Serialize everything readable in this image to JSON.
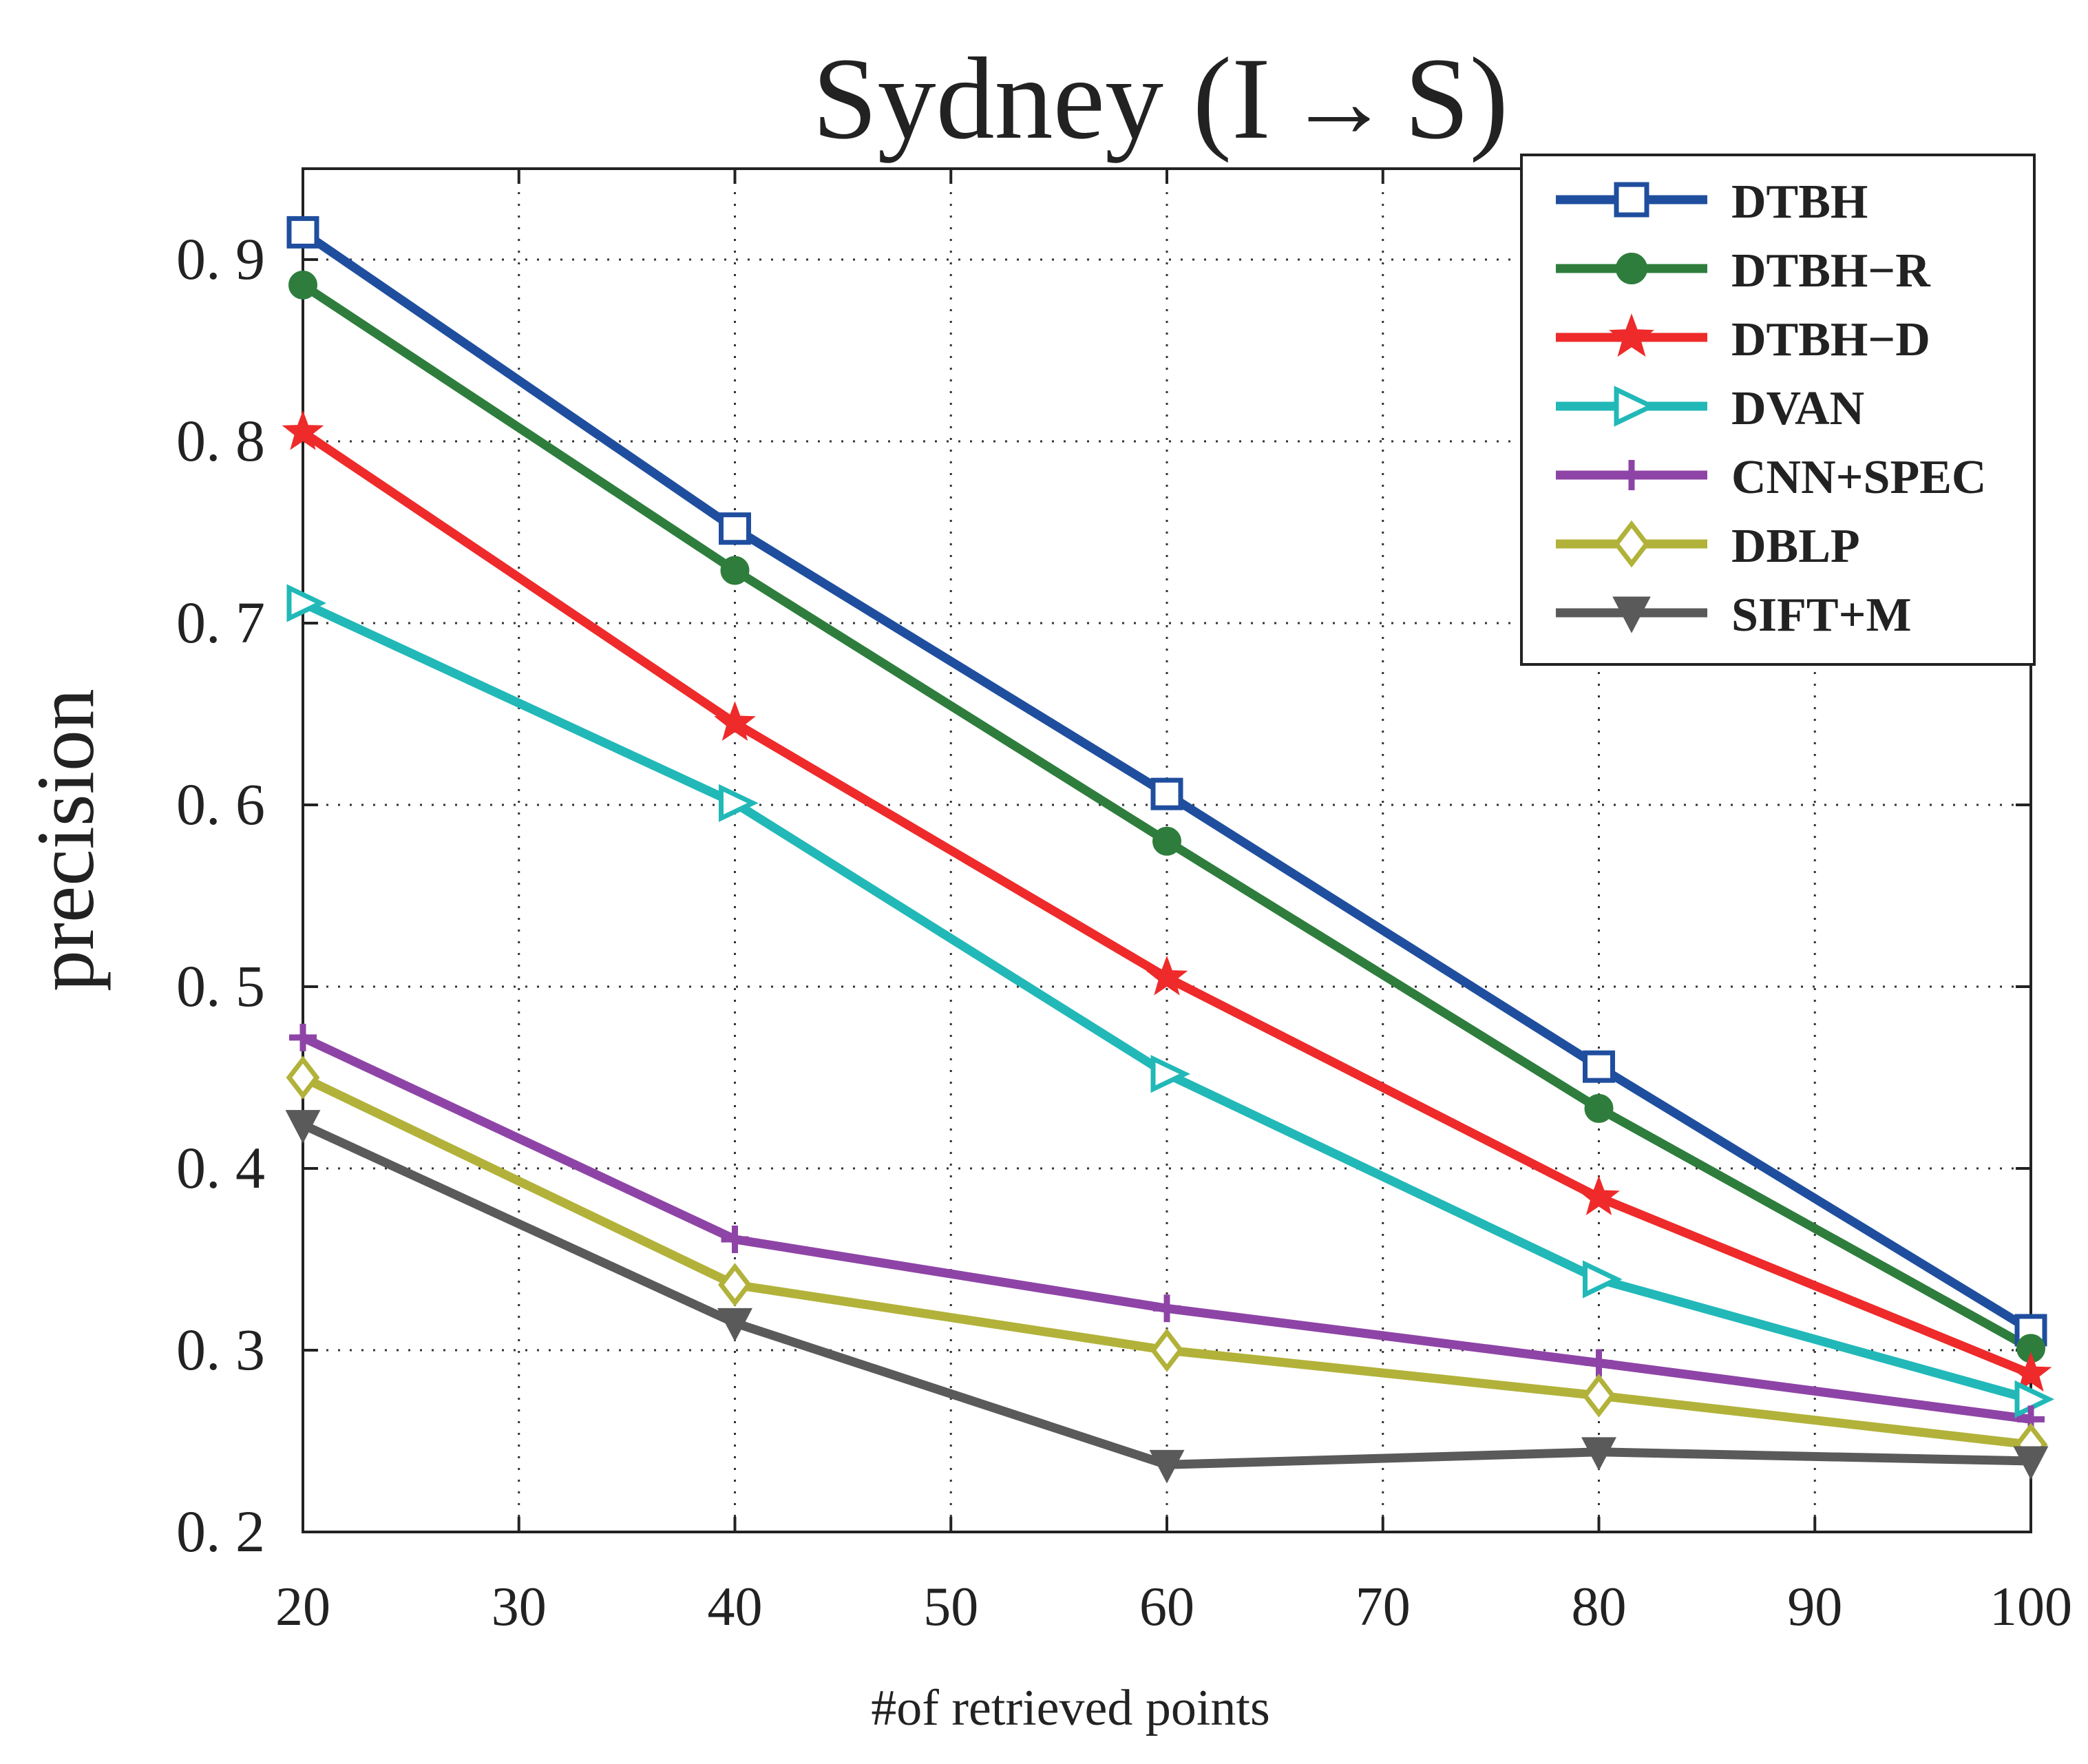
{
  "chart_data": {
    "type": "line",
    "title": "Sydney (I",
    "title_suffix": "S)",
    "title_arrow": "→",
    "xlabel": "#of retrieved points",
    "ylabel": "precision",
    "xlim": [
      20,
      100
    ],
    "ylim": [
      0.2,
      0.95
    ],
    "grid": true,
    "legend_position": "top-right",
    "x_ticks": [
      20,
      30,
      40,
      50,
      60,
      70,
      80,
      90,
      100
    ],
    "x_tick_labels": [
      "20",
      "30",
      "40",
      "50",
      "60",
      "70",
      "80",
      "90",
      "100"
    ],
    "y_ticks": [
      0.2,
      0.3,
      0.4,
      0.5,
      0.6,
      0.7,
      0.8,
      0.9
    ],
    "y_tick_labels": [
      "0. 2",
      "0. 3",
      "0. 4",
      "0. 5",
      "0. 6",
      "0. 7",
      "0. 8",
      "0. 9"
    ],
    "x": [
      20,
      40,
      60,
      80,
      100
    ],
    "series": [
      {
        "name": "DTBH",
        "color": "#1f4e9e",
        "marker": "square",
        "values": [
          0.915,
          0.752,
          0.606,
          0.456,
          0.311
        ]
      },
      {
        "name": "DTBH−R",
        "color": "#2e7d3c",
        "marker": "circle",
        "values": [
          0.886,
          0.729,
          0.58,
          0.433,
          0.301
        ]
      },
      {
        "name": "DTBH−D",
        "color": "#ee2a2a",
        "marker": "star",
        "values": [
          0.805,
          0.645,
          0.505,
          0.384,
          0.287
        ]
      },
      {
        "name": "DVAN",
        "color": "#22b8b8",
        "marker": "triangle-right",
        "values": [
          0.711,
          0.601,
          0.452,
          0.339,
          0.273
        ]
      },
      {
        "name": "CNN+SPEC",
        "color": "#8e44a6",
        "marker": "plus",
        "values": [
          0.472,
          0.361,
          0.323,
          0.293,
          0.262
        ]
      },
      {
        "name": "DBLP",
        "color": "#b2b23a",
        "marker": "diamond",
        "values": [
          0.45,
          0.336,
          0.3,
          0.275,
          0.248
        ]
      },
      {
        "name": "SIFT+M",
        "color": "#5a5a5a",
        "marker": "triangle-down",
        "values": [
          0.424,
          0.315,
          0.237,
          0.244,
          0.239
        ]
      }
    ]
  }
}
